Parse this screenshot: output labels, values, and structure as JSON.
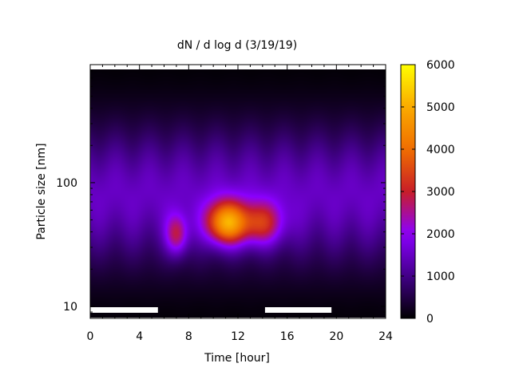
{
  "chart_data": {
    "type": "heatmap",
    "title": "dN / d log d (3/19/19)",
    "xlabel": "Time [hour]",
    "ylabel": "Particle size [nm]",
    "x_range": [
      0,
      24
    ],
    "x_ticks": [
      "0",
      "4",
      "8",
      "12",
      "16",
      "20",
      "24"
    ],
    "y_scale": "log",
    "y_range": [
      8,
      900
    ],
    "y_ticks": [
      "10",
      "100"
    ],
    "colorbar": {
      "range": [
        0,
        6000
      ],
      "ticks": [
        "0",
        "1000",
        "2000",
        "3000",
        "4000",
        "5000",
        "6000"
      ],
      "palette": "black-purple-red-orange-yellow"
    },
    "background_level": 1500,
    "blobs": [
      {
        "time": 7.0,
        "size": 45,
        "peak": 2900,
        "width_hours": 0.9,
        "width_logd": 0.16
      },
      {
        "time": 11.0,
        "size": 55,
        "peak": 4900,
        "width_hours": 1.6,
        "width_logd": 0.17
      },
      {
        "time": 13.8,
        "size": 55,
        "peak": 3300,
        "width_hours": 1.8,
        "width_logd": 0.17
      }
    ],
    "missing_bottom_segments": [
      {
        "from": 0,
        "to": 5.5
      },
      {
        "from": 14.2,
        "to": 16.8
      },
      {
        "from": 16.8,
        "to": 19.6
      }
    ]
  }
}
